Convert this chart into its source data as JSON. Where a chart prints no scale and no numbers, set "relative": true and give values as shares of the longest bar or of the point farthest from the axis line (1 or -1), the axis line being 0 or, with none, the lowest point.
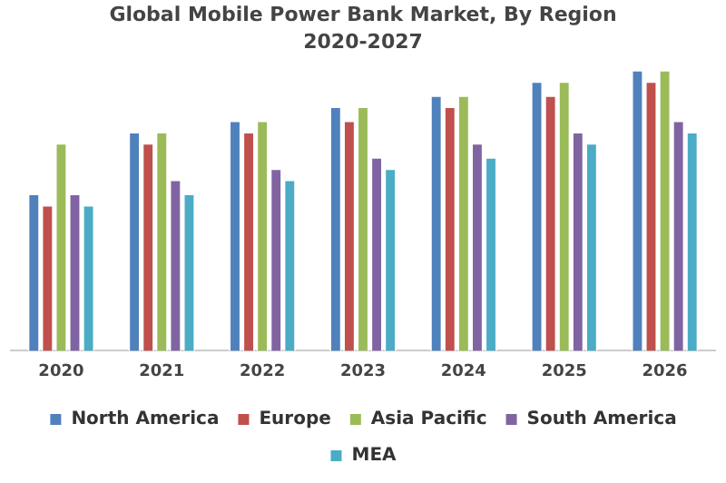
{
  "chart_data": {
    "type": "bar",
    "title": "Global Mobile Power Bank Market, By Region",
    "subtitle": "2020-2027",
    "relative": true,
    "categories": [
      "2020",
      "2021",
      "2022",
      "2023",
      "2024",
      "2025",
      "2026"
    ],
    "series": [
      {
        "name": "North America",
        "color": "#4f81bd",
        "values": [
          0.56,
          0.78,
          0.82,
          0.87,
          0.91,
          0.96,
          1
        ]
      },
      {
        "name": "Europe",
        "color": "#c0504d",
        "values": [
          0.52,
          0.74,
          0.78,
          0.82,
          0.87,
          0.91,
          0.96
        ]
      },
      {
        "name": "Asia Pacific",
        "color": "#9bbb59",
        "values": [
          0.74,
          0.78,
          0.82,
          0.87,
          0.91,
          0.96,
          1
        ]
      },
      {
        "name": "South America",
        "color": "#8064a2",
        "values": [
          0.56,
          0.61,
          0.65,
          0.69,
          0.74,
          0.78,
          0.82
        ]
      },
      {
        "name": "MEA",
        "color": "#4bacc6",
        "values": [
          0.52,
          0.56,
          0.61,
          0.65,
          0.69,
          0.74,
          0.78
        ]
      }
    ],
    "grid": false,
    "legend": "bottom"
  }
}
